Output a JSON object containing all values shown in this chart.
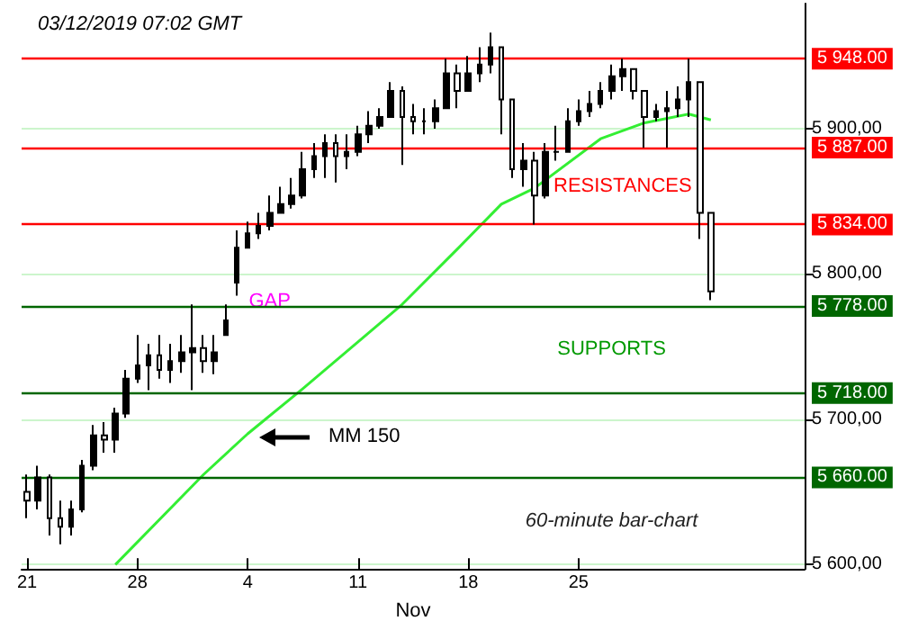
{
  "chart_data": {
    "type": "candlestick",
    "title": "03/12/2019 07:02 GMT",
    "xlabel": "Nov",
    "categories": [
      "21",
      null,
      null,
      null,
      null,
      null,
      null,
      null,
      null,
      null,
      "28",
      null,
      null,
      null,
      null,
      null,
      null,
      null,
      null,
      null,
      "4",
      null,
      null,
      null,
      null,
      null,
      null,
      null,
      null,
      null,
      "11",
      null,
      null,
      null,
      null,
      null,
      null,
      null,
      null,
      null,
      "18",
      null,
      null,
      null,
      null,
      null,
      null,
      null,
      null,
      null,
      "25",
      null,
      null,
      null,
      null,
      null,
      null,
      null,
      null,
      null,
      null,
      null,
      null,
      null,
      null,
      null,
      null,
      null,
      null,
      null,
      null
    ],
    "series": [
      {
        "color": "#000000",
        "ohlc": [
          [
            5650,
            5662,
            5632,
            5644
          ],
          [
            5644,
            5668,
            5638,
            5660
          ],
          [
            5660,
            5662,
            5620,
            5632
          ],
          [
            5632,
            5644,
            5614,
            5626
          ],
          [
            5626,
            5644,
            5620,
            5638
          ],
          [
            5638,
            5672,
            5636,
            5668
          ],
          [
            5668,
            5696,
            5665,
            5689
          ],
          [
            5689,
            5698,
            5677,
            5686
          ],
          [
            5686,
            5708,
            5677,
            5704
          ],
          [
            5704,
            5734,
            5701,
            5728
          ],
          [
            5728,
            5758,
            5725,
            5737
          ],
          [
            5737,
            5752,
            5720,
            5744
          ],
          [
            5744,
            5758,
            5728,
            5734
          ],
          [
            5734,
            5752,
            5725,
            5740
          ],
          [
            5740,
            5758,
            5732,
            5746
          ],
          [
            5746,
            5779,
            5720,
            5749
          ],
          [
            5749,
            5758,
            5732,
            5740
          ],
          [
            5740,
            5758,
            5731,
            5746
          ],
          [
            5758,
            5779,
            5758,
            5768
          ],
          [
            5794,
            5830,
            5785,
            5818
          ],
          [
            5818,
            5836,
            5818,
            5828
          ],
          [
            5828,
            5842,
            5824,
            5833
          ],
          [
            5833,
            5854,
            5830,
            5842
          ],
          [
            5842,
            5860,
            5842,
            5848
          ],
          [
            5848,
            5866,
            5845,
            5854
          ],
          [
            5854,
            5884,
            5852,
            5872
          ],
          [
            5872,
            5890,
            5866,
            5881
          ],
          [
            5881,
            5896,
            5866,
            5890
          ],
          [
            5890,
            5896,
            5863,
            5881
          ],
          [
            5881,
            5896,
            5872,
            5884
          ],
          [
            5884,
            5902,
            5881,
            5896
          ],
          [
            5896,
            5912,
            5890,
            5902
          ],
          [
            5902,
            5914,
            5900,
            5908
          ],
          [
            5908,
            5932,
            5908,
            5926
          ],
          [
            5926,
            5929,
            5875,
            5908
          ],
          [
            5908,
            5917,
            5896,
            5905
          ],
          [
            5905,
            5914,
            5896,
            5905
          ],
          [
            5905,
            5920,
            5900,
            5914
          ],
          [
            5914,
            5948,
            5914,
            5938
          ],
          [
            5938,
            5944,
            5914,
            5926
          ],
          [
            5926,
            5950,
            5926,
            5938
          ],
          [
            5938,
            5956,
            5932,
            5944
          ],
          [
            5944,
            5966,
            5938,
            5956
          ],
          [
            5956,
            5956,
            5896,
            5920
          ],
          [
            5920,
            5920,
            5866,
            5872
          ],
          [
            5872,
            5890,
            5860,
            5878
          ],
          [
            5878,
            5884,
            5834,
            5854
          ],
          [
            5854,
            5890,
            5852,
            5884
          ],
          [
            5884,
            5902,
            5878,
            5884
          ],
          [
            5884,
            5914,
            5884,
            5905
          ],
          [
            5905,
            5920,
            5902,
            5912
          ],
          [
            5912,
            5926,
            5908,
            5917
          ],
          [
            5917,
            5932,
            5914,
            5926
          ],
          [
            5926,
            5944,
            5920,
            5936
          ],
          [
            5936,
            5948,
            5926,
            5941
          ],
          [
            5941,
            5941,
            5920,
            5926
          ],
          [
            5926,
            5926,
            5887,
            5908
          ],
          [
            5908,
            5917,
            5905,
            5912
          ],
          [
            5912,
            5926,
            5887,
            5914
          ],
          [
            5914,
            5929,
            5908,
            5920
          ],
          [
            5920,
            5948,
            5908,
            5932
          ],
          [
            5932,
            5932,
            5824,
            5842
          ],
          [
            5842,
            5842,
            5782,
            5788
          ],
          null,
          null,
          null,
          null,
          null,
          null,
          null,
          null
        ]
      },
      {
        "type": "line",
        "color": "#33ee33",
        "values": [
          null,
          null,
          null,
          null,
          null,
          null,
          null,
          null,
          5600,
          null,
          null,
          null,
          null,
          null,
          null,
          null,
          5662,
          null,
          null,
          null,
          5690,
          null,
          null,
          null,
          null,
          5721,
          null,
          null,
          null,
          null,
          null,
          null,
          null,
          null,
          5779,
          null,
          null,
          null,
          null,
          5817,
          null,
          null,
          null,
          5848,
          null,
          null,
          5859,
          null,
          null,
          null,
          null,
          null,
          5893,
          null,
          null,
          null,
          5904,
          null,
          null,
          null,
          5910,
          null,
          5906,
          null,
          null,
          null,
          null,
          null,
          null,
          null,
          null
        ]
      }
    ],
    "ylim": [
      5597,
      5986
    ],
    "yticks": [
      {
        "value": 5600,
        "label": "5 600,00"
      },
      {
        "value": 5700,
        "label": "5 700,00"
      },
      {
        "value": 5800,
        "label": "5 800,00"
      },
      {
        "value": 5900,
        "label": "5 900,00"
      }
    ],
    "grid": "y",
    "ref_lines": [
      {
        "axis": "y",
        "value": 5948,
        "label": "5 948.00",
        "color": "#ff0000"
      },
      {
        "axis": "y",
        "value": 5887,
        "label": "5 887.00",
        "color": "#ff0000"
      },
      {
        "axis": "y",
        "value": 5834,
        "label": "5 834.00",
        "color": "#ff0000"
      },
      {
        "axis": "y",
        "value": 5778,
        "label": "5 778.00",
        "color": "#006600"
      },
      {
        "axis": "y",
        "value": 5718,
        "label": "5 718.00",
        "color": "#006600"
      },
      {
        "axis": "y",
        "value": 5660,
        "label": "5 660.00",
        "color": "#006600"
      }
    ],
    "annotations": [
      "GAP",
      "RESISTANCES",
      "SUPPORTS",
      "MM 150",
      "60-minute bar-chart"
    ]
  }
}
